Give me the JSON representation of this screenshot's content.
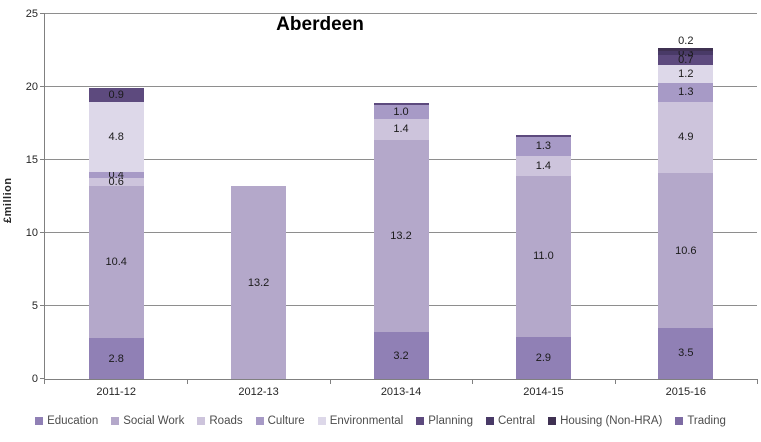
{
  "chart_data": {
    "type": "bar",
    "stacked": true,
    "title": "Aberdeen",
    "ylabel": "£million",
    "xlabel": "",
    "categories": [
      "2011-12",
      "2012-13",
      "2013-14",
      "2014-15",
      "2015-16"
    ],
    "series": [
      {
        "name": "Education",
        "color": "#9080b5",
        "values": [
          2.8,
          0,
          3.2,
          2.9,
          3.5
        ]
      },
      {
        "name": "Social Work",
        "color": "#b4a8ca",
        "values": [
          10.4,
          13.2,
          13.2,
          11.0,
          10.6
        ]
      },
      {
        "name": "Roads",
        "color": "#cdc4dc",
        "values": [
          0.6,
          0,
          1.4,
          1.4,
          4.9
        ]
      },
      {
        "name": "Culture",
        "color": "#a79ac6",
        "values": [
          0.4,
          0,
          1.0,
          1.3,
          1.3
        ]
      },
      {
        "name": "Environmental",
        "color": "#ddd8e9",
        "values": [
          4.8,
          0,
          0,
          0,
          1.2
        ]
      },
      {
        "name": "Planning",
        "color": "#5d4a7e",
        "values": [
          0.9,
          0,
          0.1,
          0.1,
          0.7
        ]
      },
      {
        "name": "Central",
        "color": "#493a67",
        "values": [
          0,
          0,
          0,
          0,
          0.3
        ]
      },
      {
        "name": "Housing (Non-HRA)",
        "color": "#3f3152",
        "values": [
          0,
          0,
          0,
          0,
          0.2
        ]
      },
      {
        "name": "Trading",
        "color": "#7d6ba3",
        "values": [
          0,
          0,
          0,
          0,
          0
        ]
      }
    ],
    "ylim": [
      0,
      25
    ],
    "yticks": [
      0,
      5,
      10,
      15,
      20,
      25
    ],
    "grid": true,
    "legend_position": "bottom",
    "label_min": 0.2
  },
  "colors": {
    "axis": "#808080",
    "gridline": "#8e8e8e",
    "tick_text": "#262626",
    "data_label_text": "#1a1a1a",
    "legend_text": "#4d4d4d"
  }
}
